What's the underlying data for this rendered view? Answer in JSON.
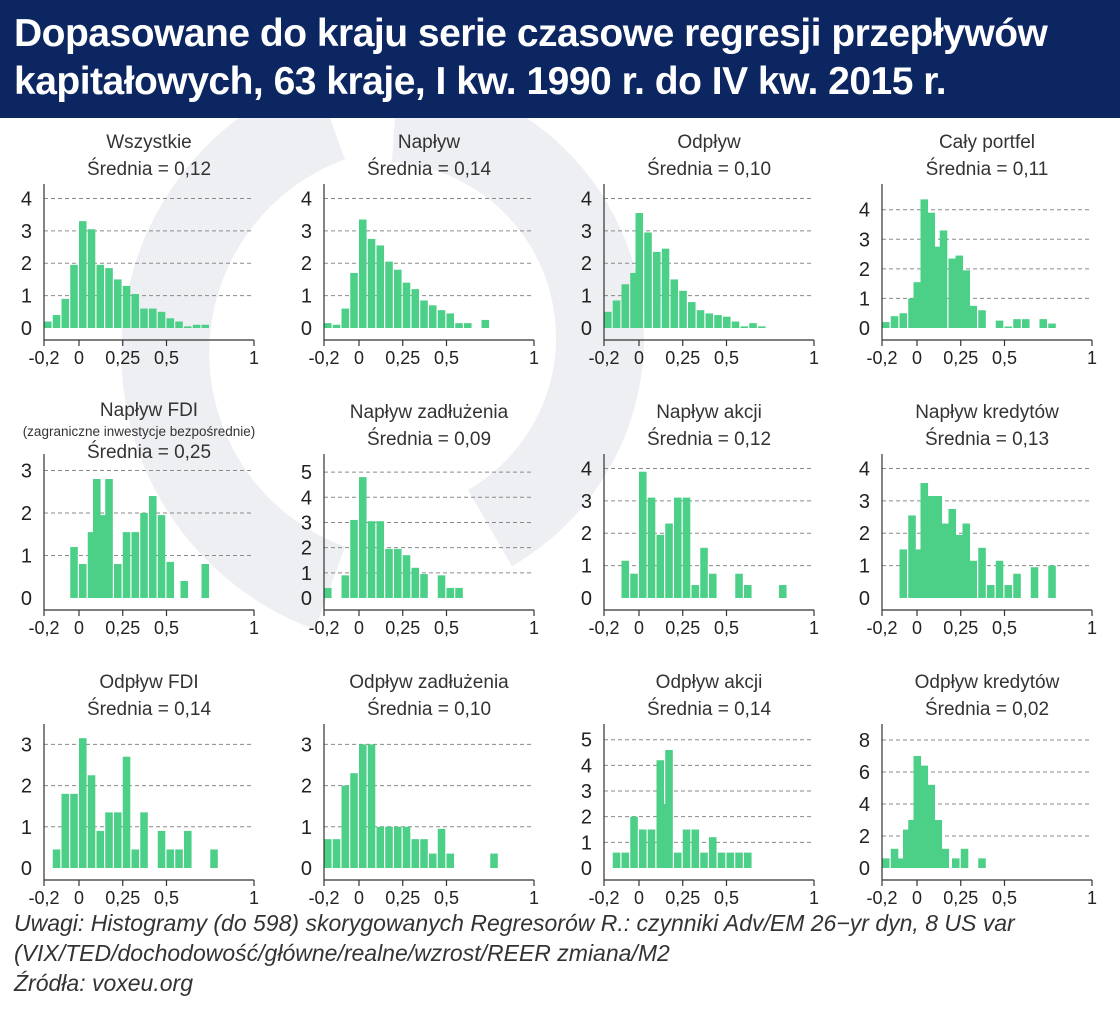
{
  "header": {
    "title_line1": "Dopasowane do kraju serie czasowe regresji przepływów",
    "title_line2": "kapitałowych, 63 kraje, I kw. 1990 r. do IV kw. 2015 r."
  },
  "colors": {
    "header_bg": "#0b2660",
    "bar": "#4ccf87",
    "watermark": "#eeeff3"
  },
  "notes": {
    "line1": "Uwagi: Histogramy (do 598) skorygowanych Regresorów R.: czynniki Adv/EM 26−yr dyn, 8 US var",
    "line2": "(VIX/TED/dochodowość/główne/realne/wzrost/REER zmiana/M2",
    "line3": "Źródła: voxeu.org"
  },
  "chart_data": [
    {
      "type": "bar",
      "title": "Wszystkie",
      "subtitle": "",
      "mean_label": "Średnia = 0,12",
      "bin_width": 0.05,
      "xlim": [
        -0.2,
        1
      ],
      "xticks": [
        -0.2,
        0,
        0.25,
        0.5,
        1
      ],
      "xtick_labels": [
        "-0,2",
        "0",
        "0,25",
        "0,5",
        "1"
      ],
      "yticks": [
        0,
        1,
        2,
        3,
        4
      ],
      "ylim": [
        0,
        4.2
      ],
      "bins": [
        {
          "x": -0.2,
          "y": 0.2
        },
        {
          "x": -0.15,
          "y": 0.4
        },
        {
          "x": -0.1,
          "y": 0.9
        },
        {
          "x": -0.05,
          "y": 1.95
        },
        {
          "x": 0,
          "y": 3.3
        },
        {
          "x": 0.05,
          "y": 3.05
        },
        {
          "x": 0.1,
          "y": 1.95
        },
        {
          "x": 0.15,
          "y": 1.85
        },
        {
          "x": 0.2,
          "y": 1.5
        },
        {
          "x": 0.25,
          "y": 1.3
        },
        {
          "x": 0.3,
          "y": 1.05
        },
        {
          "x": 0.35,
          "y": 0.6
        },
        {
          "x": 0.4,
          "y": 0.6
        },
        {
          "x": 0.45,
          "y": 0.5
        },
        {
          "x": 0.5,
          "y": 0.3
        },
        {
          "x": 0.55,
          "y": 0.2
        },
        {
          "x": 0.6,
          "y": 0.05
        },
        {
          "x": 0.65,
          "y": 0.1
        },
        {
          "x": 0.7,
          "y": 0.1
        }
      ]
    },
    {
      "type": "bar",
      "title": "Napływ",
      "subtitle": "",
      "mean_label": "Średnia = 0,14",
      "bin_width": 0.05,
      "xlim": [
        -0.2,
        1
      ],
      "xticks": [
        -0.2,
        0,
        0.25,
        0.5,
        1
      ],
      "xtick_labels": [
        "-0,2",
        "0",
        "0,25",
        "0,5",
        "1"
      ],
      "yticks": [
        0,
        1,
        2,
        3,
        4
      ],
      "ylim": [
        0,
        4.2
      ],
      "bins": [
        {
          "x": -0.2,
          "y": 0.15
        },
        {
          "x": -0.15,
          "y": 0.1
        },
        {
          "x": -0.1,
          "y": 0.6
        },
        {
          "x": -0.05,
          "y": 1.7
        },
        {
          "x": 0,
          "y": 3.35
        },
        {
          "x": 0.05,
          "y": 2.75
        },
        {
          "x": 0.1,
          "y": 2.55
        },
        {
          "x": 0.15,
          "y": 2.05
        },
        {
          "x": 0.2,
          "y": 1.8
        },
        {
          "x": 0.25,
          "y": 1.4
        },
        {
          "x": 0.3,
          "y": 1.2
        },
        {
          "x": 0.35,
          "y": 0.85
        },
        {
          "x": 0.4,
          "y": 0.7
        },
        {
          "x": 0.45,
          "y": 0.55
        },
        {
          "x": 0.5,
          "y": 0.45
        },
        {
          "x": 0.55,
          "y": 0.15
        },
        {
          "x": 0.6,
          "y": 0.15
        },
        {
          "x": 0.7,
          "y": 0.25
        }
      ]
    },
    {
      "type": "bar",
      "title": "Odpływ",
      "subtitle": "",
      "mean_label": "Średnia = 0,10",
      "bin_width": 0.05,
      "xlim": [
        -0.2,
        1
      ],
      "xticks": [
        -0.2,
        0,
        0.25,
        0.5,
        1
      ],
      "xtick_labels": [
        "-0,2",
        "0",
        "0,25",
        "0,5",
        "1"
      ],
      "yticks": [
        0,
        1,
        2,
        3,
        4
      ],
      "ylim": [
        0,
        4.2
      ],
      "bins": [
        {
          "x": -0.2,
          "y": 0.5
        },
        {
          "x": -0.15,
          "y": 0.85
        },
        {
          "x": -0.1,
          "y": 1.35
        },
        {
          "x": -0.05,
          "y": 1.7
        },
        {
          "x": -0.02,
          "y": 3.55
        },
        {
          "x": 0.03,
          "y": 2.95
        },
        {
          "x": 0.08,
          "y": 2.35
        },
        {
          "x": 0.13,
          "y": 2.45
        },
        {
          "x": 0.18,
          "y": 1.5
        },
        {
          "x": 0.23,
          "y": 1.15
        },
        {
          "x": 0.28,
          "y": 0.8
        },
        {
          "x": 0.33,
          "y": 0.55
        },
        {
          "x": 0.38,
          "y": 0.45
        },
        {
          "x": 0.43,
          "y": 0.4
        },
        {
          "x": 0.48,
          "y": 0.35
        },
        {
          "x": 0.53,
          "y": 0.2
        },
        {
          "x": 0.58,
          "y": 0.05
        },
        {
          "x": 0.63,
          "y": 0.15
        },
        {
          "x": 0.68,
          "y": 0.05
        }
      ]
    },
    {
      "type": "bar",
      "title": "Cały portfel",
      "subtitle": "",
      "mean_label": "Średnia = 0,11",
      "bin_width": 0.05,
      "xlim": [
        -0.2,
        1
      ],
      "xticks": [
        -0.2,
        0,
        0.25,
        0.5,
        1
      ],
      "xtick_labels": [
        "-0,2",
        "0",
        "0,25",
        "0,5",
        "1"
      ],
      "yticks": [
        0,
        1,
        2,
        3,
        4
      ],
      "ylim": [
        0,
        4.6
      ],
      "bins": [
        {
          "x": -0.2,
          "y": 0.2
        },
        {
          "x": -0.15,
          "y": 0.4
        },
        {
          "x": -0.1,
          "y": 0.5
        },
        {
          "x": -0.05,
          "y": 1.0
        },
        {
          "x": -0.02,
          "y": 1.55
        },
        {
          "x": 0.02,
          "y": 4.35
        },
        {
          "x": 0.06,
          "y": 3.9
        },
        {
          "x": 0.1,
          "y": 2.75
        },
        {
          "x": 0.13,
          "y": 3.3
        },
        {
          "x": 0.18,
          "y": 2.35
        },
        {
          "x": 0.22,
          "y": 2.45
        },
        {
          "x": 0.26,
          "y": 1.95
        },
        {
          "x": 0.3,
          "y": 0.75
        },
        {
          "x": 0.35,
          "y": 0.6
        },
        {
          "x": 0.45,
          "y": 0.25
        },
        {
          "x": 0.5,
          "y": 0.05
        },
        {
          "x": 0.55,
          "y": 0.3
        },
        {
          "x": 0.6,
          "y": 0.3
        },
        {
          "x": 0.7,
          "y": 0.3
        },
        {
          "x": 0.75,
          "y": 0.15
        }
      ]
    },
    {
      "type": "bar",
      "title": "Napływ FDI",
      "subtitle": "(zagraniczne inwestycje bezpośrednie)",
      "mean_label": "Średnia = 0,25",
      "bin_width": 0.05,
      "xlim": [
        -0.2,
        1
      ],
      "xticks": [
        -0.2,
        0,
        0.25,
        0.5,
        1
      ],
      "xtick_labels": [
        "-0,2",
        "0",
        "0,25",
        "0,5",
        "1"
      ],
      "yticks": [
        0,
        1,
        2,
        3
      ],
      "ylim": [
        0,
        3.2
      ],
      "bins": [
        {
          "x": -0.05,
          "y": 1.2
        },
        {
          "x": 0,
          "y": 0.8
        },
        {
          "x": 0.05,
          "y": 1.55
        },
        {
          "x": 0.08,
          "y": 2.8
        },
        {
          "x": 0.12,
          "y": 1.95
        },
        {
          "x": 0.15,
          "y": 2.8
        },
        {
          "x": 0.2,
          "y": 0.8
        },
        {
          "x": 0.25,
          "y": 1.55
        },
        {
          "x": 0.3,
          "y": 1.55
        },
        {
          "x": 0.35,
          "y": 2.0
        },
        {
          "x": 0.4,
          "y": 2.4
        },
        {
          "x": 0.45,
          "y": 1.95
        },
        {
          "x": 0.5,
          "y": 0.85
        },
        {
          "x": 0.58,
          "y": 0.4
        },
        {
          "x": 0.7,
          "y": 0.8
        }
      ]
    },
    {
      "type": "bar",
      "title": "Napływ zadłużenia",
      "subtitle": "",
      "mean_label": "Średnia = 0,09",
      "bin_width": 0.05,
      "xlim": [
        -0.2,
        1
      ],
      "xticks": [
        -0.2,
        0,
        0.25,
        0.5,
        1
      ],
      "xtick_labels": [
        "-0,2",
        "0",
        "0,25",
        "0,5",
        "1"
      ],
      "yticks": [
        0,
        1,
        2,
        3,
        4,
        5
      ],
      "ylim": [
        0,
        5.4
      ],
      "bins": [
        {
          "x": -0.2,
          "y": 0.4
        },
        {
          "x": -0.1,
          "y": 0.9
        },
        {
          "x": -0.05,
          "y": 3.1
        },
        {
          "x": 0,
          "y": 4.8
        },
        {
          "x": 0.05,
          "y": 3.05
        },
        {
          "x": 0.1,
          "y": 3.05
        },
        {
          "x": 0.15,
          "y": 1.95
        },
        {
          "x": 0.2,
          "y": 1.95
        },
        {
          "x": 0.25,
          "y": 1.7
        },
        {
          "x": 0.3,
          "y": 1.2
        },
        {
          "x": 0.35,
          "y": 0.95
        },
        {
          "x": 0.45,
          "y": 0.9
        },
        {
          "x": 0.5,
          "y": 0.4
        },
        {
          "x": 0.55,
          "y": 0.4
        }
      ]
    },
    {
      "type": "bar",
      "title": "Napływ akcji",
      "subtitle": "",
      "mean_label": "Średnia = 0,12",
      "bin_width": 0.05,
      "xlim": [
        -0.2,
        1
      ],
      "xticks": [
        -0.2,
        0,
        0.25,
        0.5,
        1
      ],
      "xtick_labels": [
        "-0,2",
        "0",
        "0,25",
        "0,5",
        "1"
      ],
      "yticks": [
        0,
        1,
        2,
        3,
        4
      ],
      "ylim": [
        0,
        4.2
      ],
      "bins": [
        {
          "x": -0.1,
          "y": 1.15
        },
        {
          "x": -0.05,
          "y": 0.75
        },
        {
          "x": 0,
          "y": 3.9
        },
        {
          "x": 0.05,
          "y": 3.1
        },
        {
          "x": 0.1,
          "y": 1.95
        },
        {
          "x": 0.15,
          "y": 2.3
        },
        {
          "x": 0.2,
          "y": 3.1
        },
        {
          "x": 0.25,
          "y": 3.1
        },
        {
          "x": 0.3,
          "y": 0.4
        },
        {
          "x": 0.35,
          "y": 1.55
        },
        {
          "x": 0.4,
          "y": 0.75
        },
        {
          "x": 0.55,
          "y": 0.75
        },
        {
          "x": 0.6,
          "y": 0.4
        },
        {
          "x": 0.8,
          "y": 0.4
        }
      ]
    },
    {
      "type": "bar",
      "title": "Napływ kredytów",
      "subtitle": "",
      "mean_label": "Średnia = 0,13",
      "bin_width": 0.05,
      "xlim": [
        -0.2,
        1
      ],
      "xticks": [
        -0.2,
        0,
        0.25,
        0.5,
        1
      ],
      "xtick_labels": [
        "-0,2",
        "0",
        "0,25",
        "0,5",
        "1"
      ],
      "yticks": [
        0,
        1,
        2,
        3,
        4
      ],
      "ylim": [
        0,
        4.2
      ],
      "bins": [
        {
          "x": -0.1,
          "y": 1.5
        },
        {
          "x": -0.05,
          "y": 2.55
        },
        {
          "x": -0.02,
          "y": 1.5
        },
        {
          "x": 0.02,
          "y": 3.55
        },
        {
          "x": 0.06,
          "y": 3.15
        },
        {
          "x": 0.1,
          "y": 3.15
        },
        {
          "x": 0.14,
          "y": 2.3
        },
        {
          "x": 0.18,
          "y": 2.75
        },
        {
          "x": 0.22,
          "y": 1.95
        },
        {
          "x": 0.26,
          "y": 2.3
        },
        {
          "x": 0.3,
          "y": 1.15
        },
        {
          "x": 0.35,
          "y": 1.55
        },
        {
          "x": 0.4,
          "y": 0.4
        },
        {
          "x": 0.45,
          "y": 1.15
        },
        {
          "x": 0.5,
          "y": 0.4
        },
        {
          "x": 0.55,
          "y": 0.75
        },
        {
          "x": 0.65,
          "y": 0.95
        },
        {
          "x": 0.75,
          "y": 1.0
        }
      ]
    },
    {
      "type": "bar",
      "title": "Odpływ FDI",
      "subtitle": "",
      "mean_label": "Średnia = 0,14",
      "bin_width": 0.05,
      "xlim": [
        -0.2,
        1
      ],
      "xticks": [
        -0.2,
        0,
        0.25,
        0.5,
        1
      ],
      "xtick_labels": [
        "-0,2",
        "0",
        "0,25",
        "0,5",
        "1"
      ],
      "yticks": [
        0,
        1,
        2,
        3
      ],
      "ylim": [
        0,
        3.3
      ],
      "bins": [
        {
          "x": -0.15,
          "y": 0.45
        },
        {
          "x": -0.1,
          "y": 1.8
        },
        {
          "x": -0.05,
          "y": 1.8
        },
        {
          "x": 0,
          "y": 3.15
        },
        {
          "x": 0.05,
          "y": 2.25
        },
        {
          "x": 0.1,
          "y": 0.9
        },
        {
          "x": 0.15,
          "y": 1.35
        },
        {
          "x": 0.2,
          "y": 1.35
        },
        {
          "x": 0.25,
          "y": 2.7
        },
        {
          "x": 0.3,
          "y": 0.45
        },
        {
          "x": 0.35,
          "y": 1.35
        },
        {
          "x": 0.45,
          "y": 0.9
        },
        {
          "x": 0.5,
          "y": 0.45
        },
        {
          "x": 0.55,
          "y": 0.45
        },
        {
          "x": 0.6,
          "y": 0.9
        },
        {
          "x": 0.75,
          "y": 0.45
        }
      ]
    },
    {
      "type": "bar",
      "title": "Odpływ zadłużenia",
      "subtitle": "",
      "mean_label": "Średnia = 0,10",
      "bin_width": 0.05,
      "xlim": [
        -0.2,
        1
      ],
      "xticks": [
        -0.2,
        0,
        0.25,
        0.5,
        1
      ],
      "xtick_labels": [
        "-0,2",
        "0",
        "0,25",
        "0,5",
        "1"
      ],
      "yticks": [
        0,
        1,
        2,
        3
      ],
      "ylim": [
        0,
        3.3
      ],
      "bins": [
        {
          "x": -0.2,
          "y": 0.7
        },
        {
          "x": -0.15,
          "y": 0.7
        },
        {
          "x": -0.1,
          "y": 2.0
        },
        {
          "x": -0.05,
          "y": 2.3
        },
        {
          "x": 0,
          "y": 3.0
        },
        {
          "x": 0.05,
          "y": 3.0
        },
        {
          "x": 0.1,
          "y": 1.0
        },
        {
          "x": 0.15,
          "y": 1.0
        },
        {
          "x": 0.2,
          "y": 1.0
        },
        {
          "x": 0.25,
          "y": 1.0
        },
        {
          "x": 0.3,
          "y": 0.7
        },
        {
          "x": 0.35,
          "y": 0.7
        },
        {
          "x": 0.4,
          "y": 0.35
        },
        {
          "x": 0.45,
          "y": 0.95
        },
        {
          "x": 0.5,
          "y": 0.35
        },
        {
          "x": 0.75,
          "y": 0.35
        }
      ]
    },
    {
      "type": "bar",
      "title": "Odpływ akcji",
      "subtitle": "",
      "mean_label": "Średnia = 0,14",
      "bin_width": 0.05,
      "xlim": [
        -0.2,
        1
      ],
      "xticks": [
        -0.2,
        0,
        0.25,
        0.5,
        1
      ],
      "xtick_labels": [
        "-0,2",
        "0",
        "0,25",
        "0,5",
        "1"
      ],
      "yticks": [
        0,
        1,
        2,
        3,
        4,
        5
      ],
      "ylim": [
        0,
        5.3
      ],
      "bins": [
        {
          "x": -0.15,
          "y": 0.6
        },
        {
          "x": -0.1,
          "y": 0.6
        },
        {
          "x": -0.05,
          "y": 2.0
        },
        {
          "x": 0,
          "y": 1.5
        },
        {
          "x": 0.05,
          "y": 1.5
        },
        {
          "x": 0.1,
          "y": 4.2
        },
        {
          "x": 0.12,
          "y": 2.5
        },
        {
          "x": 0.15,
          "y": 4.6
        },
        {
          "x": 0.2,
          "y": 0.6
        },
        {
          "x": 0.25,
          "y": 1.5
        },
        {
          "x": 0.3,
          "y": 1.5
        },
        {
          "x": 0.35,
          "y": 0.6
        },
        {
          "x": 0.4,
          "y": 1.2
        },
        {
          "x": 0.45,
          "y": 0.6
        },
        {
          "x": 0.5,
          "y": 0.6
        },
        {
          "x": 0.55,
          "y": 0.6
        },
        {
          "x": 0.6,
          "y": 0.6
        }
      ]
    },
    {
      "type": "bar",
      "title": "Odpływ kredytów",
      "subtitle": "",
      "mean_label": "Średnia = 0,02",
      "bin_width": 0.05,
      "xlim": [
        -0.2,
        1
      ],
      "xticks": [
        -0.2,
        0,
        0.25,
        0.5,
        1
      ],
      "xtick_labels": [
        "-0,2",
        "0",
        "0,25",
        "0,5",
        "1"
      ],
      "yticks": [
        0,
        2,
        4,
        6,
        8
      ],
      "ylim": [
        0,
        8.5
      ],
      "bins": [
        {
          "x": -0.2,
          "y": 0.6
        },
        {
          "x": -0.15,
          "y": 1.2
        },
        {
          "x": -0.12,
          "y": 0.6
        },
        {
          "x": -0.08,
          "y": 2.4
        },
        {
          "x": -0.05,
          "y": 3.0
        },
        {
          "x": -0.02,
          "y": 7.0
        },
        {
          "x": 0.02,
          "y": 6.4
        },
        {
          "x": 0.06,
          "y": 5.2
        },
        {
          "x": 0.1,
          "y": 3.0
        },
        {
          "x": 0.14,
          "y": 1.2
        },
        {
          "x": 0.2,
          "y": 0.6
        },
        {
          "x": 0.25,
          "y": 1.2
        },
        {
          "x": 0.35,
          "y": 0.6
        }
      ]
    }
  ]
}
